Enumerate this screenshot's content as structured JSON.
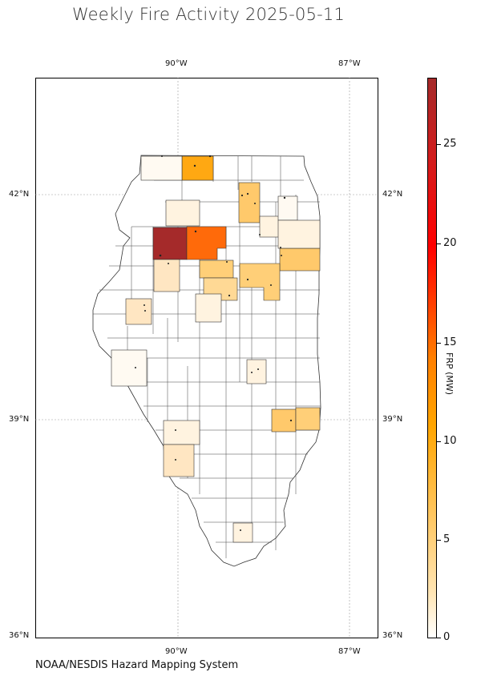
{
  "title": "Weekly Fire Activity 2025-05-11",
  "source": "NOAA/NESDIS Hazard Mapping System",
  "axes": {
    "top_ticks": [
      "90°W",
      "87°W"
    ],
    "bottom_ticks": [
      "90°W",
      "87°W"
    ],
    "left_ticks": [
      "42°N",
      "39°N",
      "36°N"
    ],
    "right_ticks": [
      "42°N",
      "39°N",
      "36°N"
    ]
  },
  "colorbar": {
    "label": "FRP (MW)",
    "min": 0,
    "max": 28.5,
    "ticks": [
      "0",
      "5",
      "10",
      "15",
      "20",
      "25"
    ],
    "colors": [
      "#ffffff",
      "#ffe5b4",
      "#ffc65f",
      "#ffa500",
      "#ff7f00",
      "#ff0000",
      "#a52a2a"
    ]
  },
  "map": {
    "region": "Illinois counties",
    "lon_range": [
      -92.0,
      -86.0
    ],
    "lat_range": [
      36.0,
      43.5
    ],
    "grid": true
  },
  "highlighted_counties": [
    {
      "frp": 28.5,
      "color": "#a52a2a"
    },
    {
      "frp": 13,
      "color": "#ff6a0a"
    },
    {
      "frp": 10,
      "color": "#ffa812"
    },
    {
      "frp": 6,
      "color": "#ffc96b"
    },
    {
      "frp": 5,
      "color": "#ffcf78"
    },
    {
      "frp": 4,
      "color": "#ffd995"
    },
    {
      "frp": 2.5,
      "color": "#ffe6c2"
    },
    {
      "frp": 1,
      "color": "#fff3e0"
    },
    {
      "frp": 0.5,
      "color": "#fffaf2"
    }
  ]
}
